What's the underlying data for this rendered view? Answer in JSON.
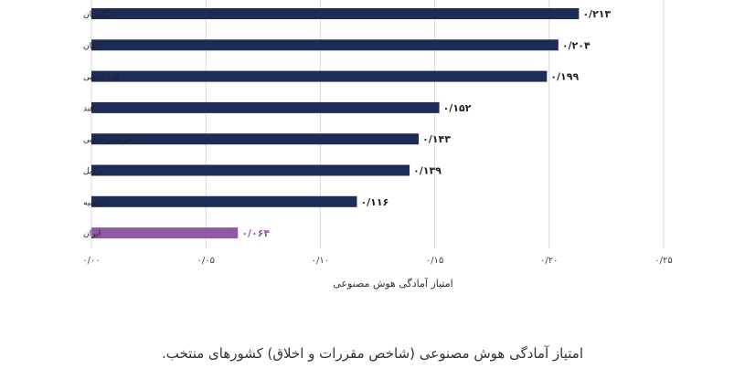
{
  "chart_data": {
    "type": "bar",
    "orientation": "horizontal",
    "categories": [
      "انگلستان",
      "آلمان",
      "کره جنوبی",
      "هند",
      "آفریقای جنوبی",
      "برزیل",
      "روسیه",
      "ایران"
    ],
    "values": [
      0.213,
      0.204,
      0.199,
      0.152,
      0.143,
      0.139,
      0.116,
      0.064
    ],
    "value_labels": [
      "۰/۲۱۳",
      "۰/۲۰۴",
      "۰/۱۹۹",
      "۰/۱۵۲",
      "۰/۱۴۳",
      "۰/۱۳۹",
      "۰/۱۱۶",
      "۰/۰۶۴"
    ],
    "highlight_index": 7,
    "xlabel": "امتیاز آمادگی هوش مصنوعی",
    "xlim": [
      0,
      0.25
    ],
    "x_ticks": [
      0,
      0.05,
      0.1,
      0.15,
      0.2,
      0.25
    ],
    "x_tick_labels": [
      "۰/۰۰",
      "۰/۰۵",
      "۰/۱۰",
      "۰/۱۵",
      "۰/۲۰",
      "۰/۲۵"
    ],
    "grid": "vertical",
    "colors": {
      "bar": "#1d2b57",
      "highlight": "#8e5aa8",
      "grid": "#d9d9d9",
      "text": "#222222"
    }
  },
  "caption": "امتیاز آمادگی هوش مصنوعی (شاخص مقررات و اخلاق) کشورهای منتخب."
}
